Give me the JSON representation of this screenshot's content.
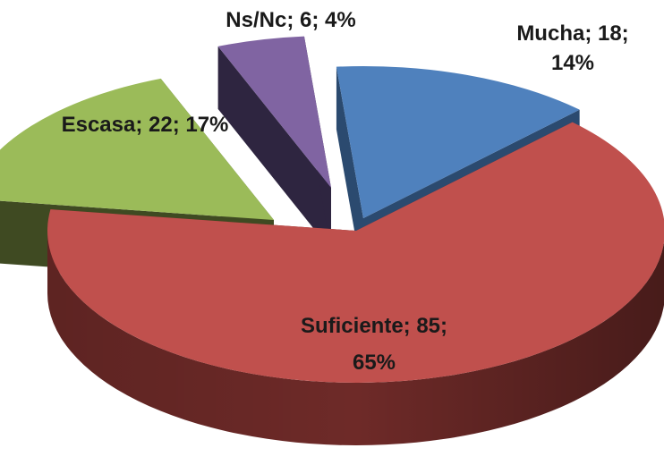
{
  "chart_data": {
    "type": "pie",
    "title": "",
    "legend": "none",
    "style": "3d-exploded",
    "slices": [
      {
        "category": "Mucha",
        "value": 18,
        "percent": 14,
        "color": "#4F81BD",
        "side_color": "#2B4A6F",
        "label_lines": [
          "Mucha; 18;",
          "14%"
        ]
      },
      {
        "category": "Suficiente",
        "value": 85,
        "percent": 65,
        "color": "#C0504D",
        "side_color": "#6E2A28",
        "label_lines": [
          "Suficiente; 85;",
          "65%"
        ]
      },
      {
        "category": "Escasa",
        "value": 22,
        "percent": 17,
        "color": "#9BBB59",
        "side_color": "#3F4A22",
        "label_lines": [
          "Escasa; 22; 17%"
        ]
      },
      {
        "category": "Ns/Nc",
        "value": 6,
        "percent": 4,
        "color": "#8064A2",
        "side_color": "#2E2540",
        "label_lines": [
          "Ns/Nc; 6; 4%"
        ]
      }
    ]
  }
}
